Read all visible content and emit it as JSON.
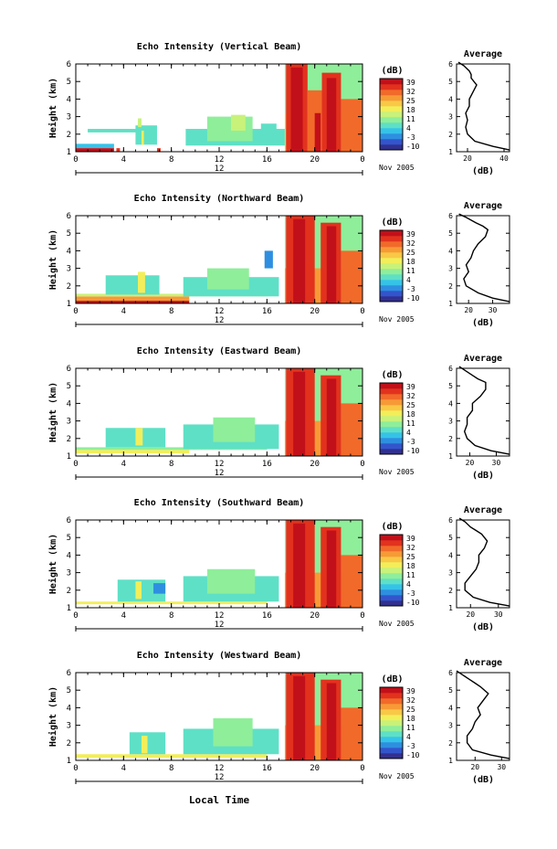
{
  "figure": {
    "bottom_xlabel": "Local Time",
    "date_label": "Nov 2005",
    "day_marker": "12"
  },
  "colorbar": {
    "unit": "(dB)",
    "ticks": [
      "39",
      "32",
      "25",
      "18",
      "11",
      "4",
      "-3",
      "-10"
    ],
    "colors": [
      "#32308f",
      "#3355cc",
      "#2e8fe0",
      "#36c3e8",
      "#5ee0c6",
      "#8fee9a",
      "#c8f27a",
      "#f2ee5a",
      "#f9c846",
      "#f79a36",
      "#f16a2a",
      "#e2321e",
      "#c2101a"
    ]
  },
  "chart_data": [
    {
      "type": "heatmap",
      "title": "Echo Intensity (Vertical Beam)",
      "xlabel": "",
      "ylabel": "Height (km)",
      "x_ticks": [
        "0",
        "4",
        "8",
        "12",
        "16",
        "20",
        "0"
      ],
      "y_ticks": [
        "1",
        "2",
        "3",
        "4",
        "5",
        "6"
      ],
      "xlim": [
        0,
        24
      ],
      "ylim": [
        1,
        6
      ],
      "cells": [
        {
          "x": [
            0,
            3.2
          ],
          "y": [
            1.2,
            1.45
          ],
          "level": 3
        },
        {
          "x": [
            0,
            3.2
          ],
          "y": [
            1.0,
            1.2
          ],
          "level": 12
        },
        {
          "x": [
            3.4,
            3.7
          ],
          "y": [
            1.0,
            1.2
          ],
          "level": 11
        },
        {
          "x": [
            6.8,
            7.1
          ],
          "y": [
            1.0,
            1.2
          ],
          "level": 11
        },
        {
          "x": [
            1.0,
            5.6
          ],
          "y": [
            2.1,
            2.3
          ],
          "level": 4
        },
        {
          "x": [
            5.0,
            6.8
          ],
          "y": [
            1.4,
            2.5
          ],
          "level": 4
        },
        {
          "x": [
            5.2,
            5.5
          ],
          "y": [
            2.4,
            2.9
          ],
          "level": 6
        },
        {
          "x": [
            5.5,
            5.7
          ],
          "y": [
            1.4,
            2.2
          ],
          "level": 7
        },
        {
          "x": [
            9.2,
            17.5
          ],
          "y": [
            1.35,
            2.3
          ],
          "level": 4
        },
        {
          "x": [
            11.0,
            14.8
          ],
          "y": [
            1.6,
            3.0
          ],
          "level": 5
        },
        {
          "x": [
            13.0,
            14.2
          ],
          "y": [
            2.2,
            3.1
          ],
          "level": 6
        },
        {
          "x": [
            15.5,
            16.8
          ],
          "y": [
            1.6,
            2.6
          ],
          "level": 4
        },
        {
          "x": [
            17.5,
            24.0
          ],
          "y": [
            1.0,
            6.4
          ],
          "level": 5
        },
        {
          "x": [
            17.5,
            24.0
          ],
          "y": [
            1.0,
            3.2
          ],
          "level": 8
        },
        {
          "x": [
            17.6,
            19.4
          ],
          "y": [
            1.0,
            6.4
          ],
          "level": 11
        },
        {
          "x": [
            19.4,
            20.6
          ],
          "y": [
            1.0,
            4.5
          ],
          "level": 10
        },
        {
          "x": [
            20.6,
            22.2
          ],
          "y": [
            1.0,
            5.5
          ],
          "level": 11
        },
        {
          "x": [
            22.2,
            24.0
          ],
          "y": [
            1.0,
            4.0
          ],
          "level": 10
        },
        {
          "x": [
            18.0,
            19.0
          ],
          "y": [
            1.0,
            5.8
          ],
          "level": 12
        },
        {
          "x": [
            21.0,
            21.8
          ],
          "y": [
            1.0,
            5.2
          ],
          "level": 12
        },
        {
          "x": [
            20.0,
            20.5
          ],
          "y": [
            1.0,
            3.2
          ],
          "level": 12
        }
      ],
      "average_profile": {
        "title": "Average",
        "xlabel": "(dB)",
        "x_ticks": [
          "20",
          "40"
        ],
        "y_ticks": [
          "1",
          "2",
          "3",
          "4",
          "5",
          "6"
        ],
        "xlim": [
          14,
          43
        ],
        "ylim": [
          1,
          6
        ],
        "x": [
          43,
          34,
          24,
          20,
          19,
          20,
          19,
          21,
          21,
          23,
          25,
          22,
          22,
          21,
          18,
          15
        ],
        "y": [
          1.1,
          1.3,
          1.6,
          2.0,
          2.4,
          2.8,
          3.2,
          3.6,
          4.0,
          4.4,
          4.8,
          5.2,
          5.4,
          5.6,
          5.9,
          6.1
        ]
      }
    },
    {
      "type": "heatmap",
      "title": "Echo Intensity (Northward Beam)",
      "xlabel": "",
      "ylabel": "Height (km)",
      "x_ticks": [
        "0",
        "4",
        "8",
        "12",
        "16",
        "20",
        "0"
      ],
      "y_ticks": [
        "1",
        "2",
        "3",
        "4",
        "5",
        "6"
      ],
      "xlim": [
        0,
        24
      ],
      "ylim": [
        1,
        6
      ],
      "cells": [
        {
          "x": [
            0,
            9.5
          ],
          "y": [
            1.15,
            1.4
          ],
          "level": 9
        },
        {
          "x": [
            0,
            9.5
          ],
          "y": [
            1.0,
            1.15
          ],
          "level": 12
        },
        {
          "x": [
            0,
            16.0
          ],
          "y": [
            1.4,
            1.55
          ],
          "level": 6
        },
        {
          "x": [
            2.5,
            7.0
          ],
          "y": [
            1.5,
            2.6
          ],
          "level": 4
        },
        {
          "x": [
            5.2,
            5.8
          ],
          "y": [
            1.6,
            2.8
          ],
          "level": 7
        },
        {
          "x": [
            9.0,
            17.0
          ],
          "y": [
            1.4,
            2.5
          ],
          "level": 4
        },
        {
          "x": [
            11.0,
            14.5
          ],
          "y": [
            1.8,
            3.0
          ],
          "level": 5
        },
        {
          "x": [
            15.8,
            16.5
          ],
          "y": [
            3.0,
            4.0
          ],
          "level": 2
        },
        {
          "x": [
            17.5,
            24.0
          ],
          "y": [
            1.0,
            6.4
          ],
          "level": 5
        },
        {
          "x": [
            17.5,
            24.0
          ],
          "y": [
            1.0,
            3.0
          ],
          "level": 9
        },
        {
          "x": [
            17.6,
            20.0
          ],
          "y": [
            1.0,
            6.2
          ],
          "level": 11
        },
        {
          "x": [
            20.5,
            22.2
          ],
          "y": [
            1.0,
            5.6
          ],
          "level": 11
        },
        {
          "x": [
            22.2,
            24.0
          ],
          "y": [
            1.0,
            4.0
          ],
          "level": 10
        },
        {
          "x": [
            18.2,
            19.2
          ],
          "y": [
            1.0,
            5.8
          ],
          "level": 12
        },
        {
          "x": [
            21.0,
            21.8
          ],
          "y": [
            1.0,
            5.4
          ],
          "level": 12
        }
      ],
      "average_profile": {
        "title": "Average",
        "xlabel": "(dB)",
        "x_ticks": [
          "20",
          "30"
        ],
        "y_ticks": [
          "1",
          "2",
          "3",
          "4",
          "5",
          "6"
        ],
        "xlim": [
          15,
          37
        ],
        "ylim": [
          1,
          6
        ],
        "x": [
          37,
          30,
          24,
          19,
          18,
          20,
          19,
          21,
          22,
          24,
          27,
          28,
          26,
          23,
          19,
          16
        ],
        "y": [
          1.1,
          1.3,
          1.6,
          2.0,
          2.4,
          2.8,
          3.2,
          3.6,
          4.0,
          4.4,
          4.8,
          5.2,
          5.4,
          5.6,
          5.9,
          6.1
        ]
      }
    },
    {
      "type": "heatmap",
      "title": "Echo Intensity (Eastward Beam)",
      "xlabel": "",
      "ylabel": "Height (km)",
      "x_ticks": [
        "0",
        "4",
        "8",
        "12",
        "16",
        "20",
        "0"
      ],
      "y_ticks": [
        "1",
        "2",
        "3",
        "4",
        "5",
        "6"
      ],
      "xlim": [
        0,
        24
      ],
      "ylim": [
        1,
        6
      ],
      "cells": [
        {
          "x": [
            0,
            9.5
          ],
          "y": [
            1.15,
            1.35
          ],
          "level": 7
        },
        {
          "x": [
            0,
            16.0
          ],
          "y": [
            1.35,
            1.5
          ],
          "level": 5
        },
        {
          "x": [
            2.5,
            7.5
          ],
          "y": [
            1.5,
            2.6
          ],
          "level": 4
        },
        {
          "x": [
            5.0,
            5.6
          ],
          "y": [
            1.6,
            2.6
          ],
          "level": 7
        },
        {
          "x": [
            9.0,
            17.0
          ],
          "y": [
            1.4,
            2.8
          ],
          "level": 4
        },
        {
          "x": [
            11.5,
            15.0
          ],
          "y": [
            1.8,
            3.2
          ],
          "level": 5
        },
        {
          "x": [
            17.5,
            24.0
          ],
          "y": [
            1.0,
            6.4
          ],
          "level": 5
        },
        {
          "x": [
            17.5,
            24.0
          ],
          "y": [
            1.0,
            3.0
          ],
          "level": 9
        },
        {
          "x": [
            17.6,
            20.0
          ],
          "y": [
            1.0,
            6.4
          ],
          "level": 11
        },
        {
          "x": [
            20.5,
            22.2
          ],
          "y": [
            1.0,
            5.6
          ],
          "level": 11
        },
        {
          "x": [
            22.2,
            24.0
          ],
          "y": [
            1.0,
            4.0
          ],
          "level": 10
        },
        {
          "x": [
            18.2,
            19.2
          ],
          "y": [
            1.0,
            5.8
          ],
          "level": 12
        },
        {
          "x": [
            21.0,
            21.8
          ],
          "y": [
            1.0,
            5.4
          ],
          "level": 12
        }
      ],
      "average_profile": {
        "title": "Average",
        "xlabel": "(dB)",
        "x_ticks": [
          "20",
          "30"
        ],
        "y_ticks": [
          "1",
          "2",
          "3",
          "4",
          "5",
          "6"
        ],
        "xlim": [
          15,
          35
        ],
        "ylim": [
          1,
          6
        ],
        "x": [
          35,
          28,
          22,
          19,
          18,
          19,
          19,
          21,
          21,
          24,
          26,
          26,
          23,
          21,
          18,
          16
        ],
        "y": [
          1.1,
          1.3,
          1.6,
          2.0,
          2.4,
          2.8,
          3.2,
          3.6,
          4.0,
          4.4,
          4.8,
          5.2,
          5.4,
          5.6,
          5.9,
          6.1
        ]
      }
    },
    {
      "type": "heatmap",
      "title": "Echo Intensity (Southward Beam)",
      "xlabel": "",
      "ylabel": "Height (km)",
      "x_ticks": [
        "0",
        "4",
        "8",
        "12",
        "16",
        "20",
        "0"
      ],
      "y_ticks": [
        "1",
        "2",
        "3",
        "4",
        "5",
        "6"
      ],
      "xlim": [
        0,
        24
      ],
      "ylim": [
        1,
        6
      ],
      "cells": [
        {
          "x": [
            0,
            16.0
          ],
          "y": [
            1.2,
            1.35
          ],
          "level": 7
        },
        {
          "x": [
            3.5,
            7.5
          ],
          "y": [
            1.35,
            2.6
          ],
          "level": 4
        },
        {
          "x": [
            5.0,
            5.5
          ],
          "y": [
            1.5,
            2.5
          ],
          "level": 7
        },
        {
          "x": [
            6.5,
            7.5
          ],
          "y": [
            1.8,
            2.4
          ],
          "level": 2
        },
        {
          "x": [
            9.0,
            17.0
          ],
          "y": [
            1.35,
            2.8
          ],
          "level": 4
        },
        {
          "x": [
            11.0,
            15.0
          ],
          "y": [
            1.8,
            3.2
          ],
          "level": 5
        },
        {
          "x": [
            17.5,
            24.0
          ],
          "y": [
            1.0,
            6.4
          ],
          "level": 5
        },
        {
          "x": [
            17.5,
            24.0
          ],
          "y": [
            1.0,
            3.0
          ],
          "level": 9
        },
        {
          "x": [
            17.6,
            20.0
          ],
          "y": [
            1.0,
            6.4
          ],
          "level": 11
        },
        {
          "x": [
            20.5,
            22.2
          ],
          "y": [
            1.0,
            5.6
          ],
          "level": 11
        },
        {
          "x": [
            22.2,
            24.0
          ],
          "y": [
            1.0,
            4.0
          ],
          "level": 10
        },
        {
          "x": [
            18.2,
            19.2
          ],
          "y": [
            1.0,
            5.8
          ],
          "level": 12
        },
        {
          "x": [
            21.0,
            21.8
          ],
          "y": [
            1.0,
            5.4
          ],
          "level": 12
        }
      ],
      "average_profile": {
        "title": "Average",
        "xlabel": "(dB)",
        "x_ticks": [
          "20",
          "30"
        ],
        "y_ticks": [
          "1",
          "2",
          "3",
          "4",
          "5",
          "6"
        ],
        "xlim": [
          15,
          34
        ],
        "ylim": [
          1,
          6
        ],
        "x": [
          34,
          27,
          21,
          18,
          18,
          20,
          22,
          23,
          23,
          25,
          26,
          24,
          22,
          20,
          18,
          16
        ],
        "y": [
          1.1,
          1.3,
          1.6,
          2.0,
          2.4,
          2.8,
          3.2,
          3.6,
          4.0,
          4.4,
          4.8,
          5.2,
          5.4,
          5.6,
          5.9,
          6.1
        ]
      }
    },
    {
      "type": "heatmap",
      "title": "Echo Intensity (Westward Beam)",
      "xlabel": "",
      "ylabel": "Height (km)",
      "x_ticks": [
        "0",
        "4",
        "8",
        "12",
        "16",
        "20",
        "0"
      ],
      "y_ticks": [
        "1",
        "2",
        "3",
        "4",
        "5",
        "6"
      ],
      "xlim": [
        0,
        24
      ],
      "ylim": [
        1,
        6
      ],
      "cells": [
        {
          "x": [
            0,
            16.0
          ],
          "y": [
            1.15,
            1.35
          ],
          "level": 7
        },
        {
          "x": [
            4.5,
            7.5
          ],
          "y": [
            1.35,
            2.6
          ],
          "level": 4
        },
        {
          "x": [
            5.5,
            6.0
          ],
          "y": [
            1.4,
            2.4
          ],
          "level": 7
        },
        {
          "x": [
            9.0,
            17.0
          ],
          "y": [
            1.35,
            2.8
          ],
          "level": 4
        },
        {
          "x": [
            11.5,
            14.8
          ],
          "y": [
            1.8,
            3.4
          ],
          "level": 5
        },
        {
          "x": [
            17.5,
            24.0
          ],
          "y": [
            1.0,
            6.4
          ],
          "level": 5
        },
        {
          "x": [
            17.5,
            24.0
          ],
          "y": [
            1.0,
            3.0
          ],
          "level": 9
        },
        {
          "x": [
            17.6,
            20.0
          ],
          "y": [
            1.0,
            6.4
          ],
          "level": 11
        },
        {
          "x": [
            20.5,
            22.2
          ],
          "y": [
            1.0,
            5.6
          ],
          "level": 11
        },
        {
          "x": [
            22.2,
            24.0
          ],
          "y": [
            1.0,
            4.0
          ],
          "level": 10
        },
        {
          "x": [
            18.2,
            19.2
          ],
          "y": [
            1.0,
            5.8
          ],
          "level": 12
        },
        {
          "x": [
            21.0,
            21.8
          ],
          "y": [
            1.0,
            5.4
          ],
          "level": 12
        }
      ],
      "average_profile": {
        "title": "Average",
        "xlabel": "(dB)",
        "x_ticks": [
          "20",
          "30"
        ],
        "y_ticks": [
          "1",
          "2",
          "3",
          "4",
          "5",
          "6"
        ],
        "xlim": [
          13,
          33
        ],
        "ylim": [
          1,
          6
        ],
        "x": [
          33,
          26,
          19,
          17,
          17,
          19,
          20,
          22,
          21,
          23,
          25,
          22,
          20,
          18,
          15,
          13
        ],
        "y": [
          1.1,
          1.3,
          1.6,
          2.0,
          2.4,
          2.8,
          3.2,
          3.6,
          4.0,
          4.4,
          4.8,
          5.2,
          5.4,
          5.6,
          5.9,
          6.1
        ]
      }
    }
  ]
}
